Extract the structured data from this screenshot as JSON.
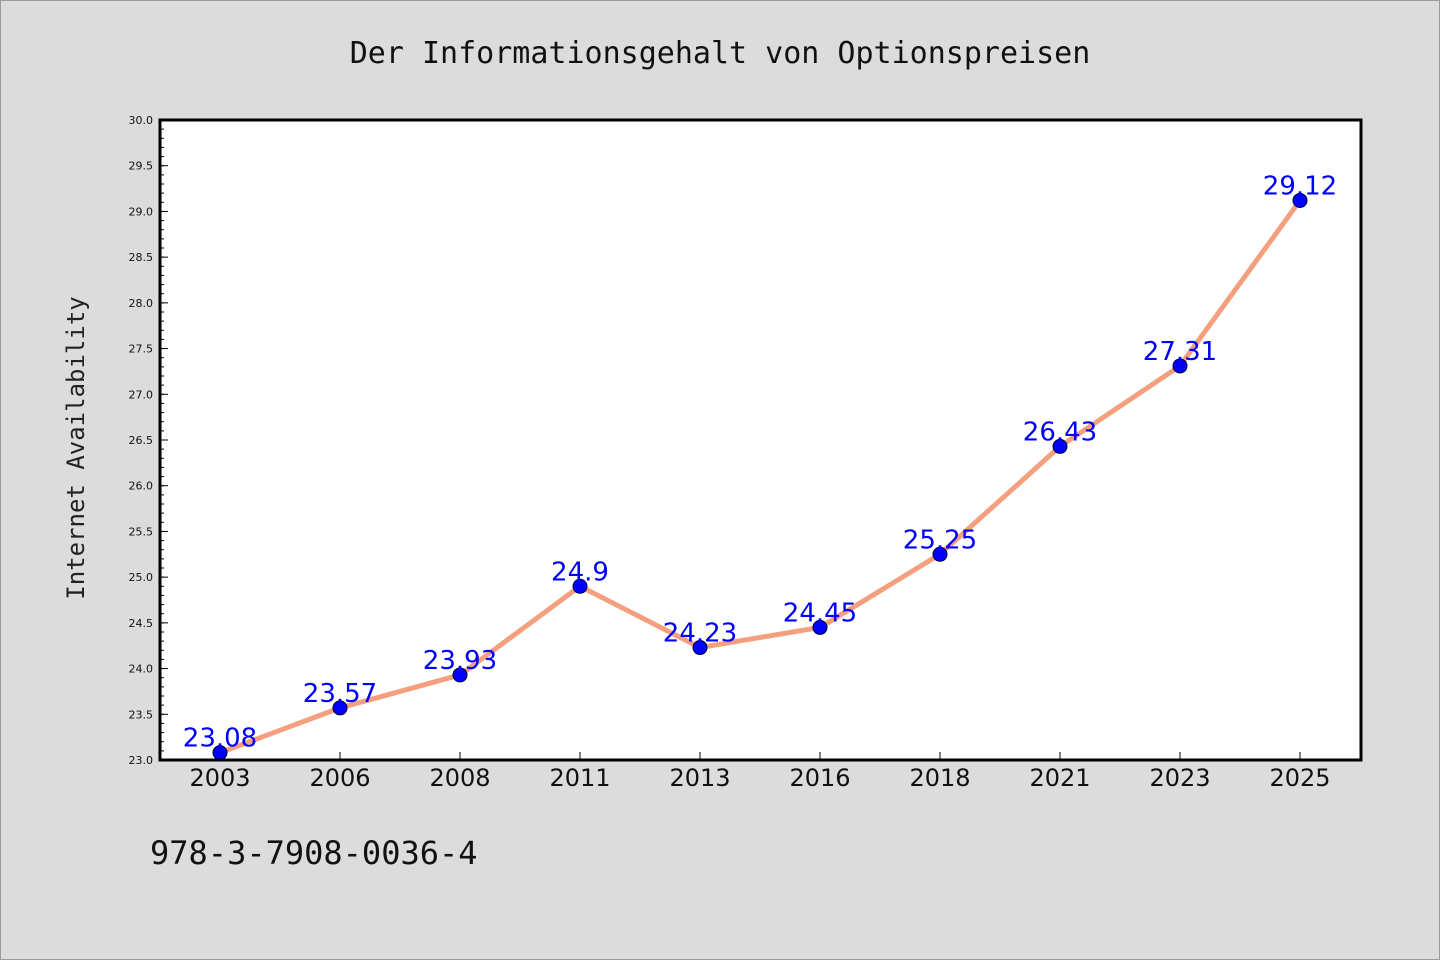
{
  "chart_data": {
    "type": "line",
    "title": "Der Informationsgehalt von Optionspreisen",
    "xlabel": "",
    "ylabel": "Internet Availability",
    "categories": [
      "2003",
      "2006",
      "2008",
      "2011",
      "2013",
      "2016",
      "2018",
      "2021",
      "2023",
      "2025"
    ],
    "series": [
      {
        "values": [
          23.08,
          23.57,
          23.93,
          24.9,
          24.23,
          24.45,
          25.25,
          26.43,
          27.31,
          29.12
        ],
        "line_color": "#f4a07e",
        "marker_color": "#0000ff"
      }
    ],
    "data_labels": [
      "23.08",
      "23.57",
      "23.93",
      "24.9",
      "24.23",
      "24.45",
      "25.25",
      "26.43",
      "27.31",
      "29.12"
    ],
    "ylim": [
      23.0,
      30.0
    ],
    "yticks": [
      "23.0",
      "23.5",
      "24.0",
      "24.5",
      "25.0",
      "25.5",
      "26.0",
      "26.5",
      "27.0",
      "27.5",
      "28.0",
      "28.5",
      "29.0",
      "29.5",
      "30.0"
    ],
    "grid": false,
    "legend": "none"
  },
  "footer": {
    "text": "978-3-7908-0036-4"
  }
}
